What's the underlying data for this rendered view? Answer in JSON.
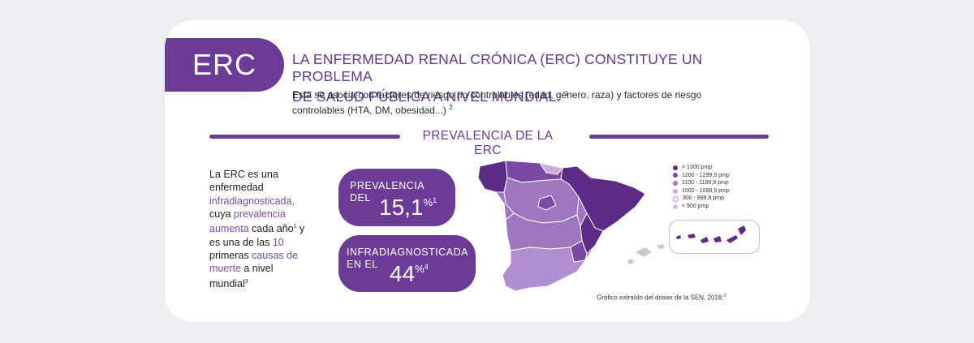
{
  "tag": "ERC",
  "headline": {
    "line1": "LA ENFERMEDAD RENAL CRÓNICA (ERC) CONSTITUYE UN PROBLEMA",
    "line2": "DE SALUD PÚBLICA A NIVEL MUNDIAL.",
    "ref": "1"
  },
  "description": {
    "text": "Esta se asocia con factores de riesgo no controlables (edad, género, raza) y factores de riesgo controlables (HTA, DM, obesidad...)",
    "ref": "2"
  },
  "section_title": "PREVALENCIA DE LA ERC",
  "side_text": {
    "p1": "La ERC es una enfermedad ",
    "h1": "infradiagnosticada,",
    "p2": " cuya ",
    "h2": "prevalencia aumenta",
    "p3": " cada año",
    "s1": "1",
    "p4": " y es una de las ",
    "h3": "10",
    "p5": " primeras ",
    "h4": "causas de muerte",
    "p6": " a nivel mundial",
    "s2": "3"
  },
  "stat1": {
    "label_line1": "PREVALENCIA",
    "label_line2": "DEL",
    "value": "15,1",
    "unit": "%",
    "ref": "1"
  },
  "stat2": {
    "label_line1": "INFRADIAGNOSTICADA",
    "label_line2": "EN EL",
    "value": "44",
    "unit": "%",
    "ref": "4"
  },
  "legend": [
    {
      "label": "> 1300 pmp",
      "color": "#5b2b86",
      "filled": true
    },
    {
      "label": "1200 - 1299,9 pmp",
      "color": "#7a4aa3",
      "filled": true
    },
    {
      "label": "1100 - 1199,9 pmp",
      "color": "#9d78c0",
      "filled": true
    },
    {
      "label": "1000 - 1099,9 pmp",
      "color": "#c7afde",
      "filled": true
    },
    {
      "label": "900 - 999,9 pmp",
      "color": "#b08fd0",
      "filled": false
    },
    {
      "label": "< 900 pmp",
      "color": "#c9c9cf",
      "filled": true
    }
  ],
  "caption": {
    "text": "Gráfico extraído del dosier de la SEN, 2018.",
    "ref": "2"
  }
}
